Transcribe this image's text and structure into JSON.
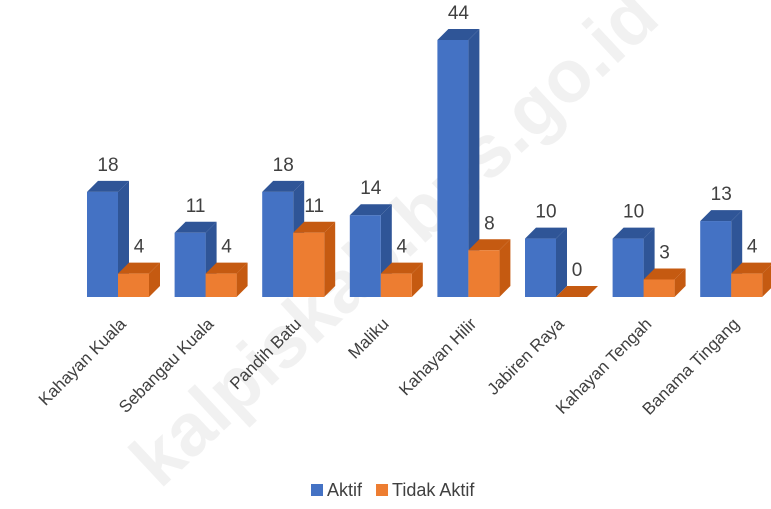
{
  "watermark": "kalpiskab.bps.go.id",
  "colors": {
    "aktif": "#4472c4",
    "aktif_side": "#2f5597",
    "aktif_top": "#2f5597",
    "tidak_aktif": "#ed7d31",
    "tidak_aktif_side": "#c55a11",
    "tidak_aktif_top": "#c55a11"
  },
  "chart_data": {
    "type": "bar",
    "title": "",
    "xlabel": "",
    "ylabel": "",
    "ylim": [
      0,
      44
    ],
    "grid": false,
    "legend_position": "bottom",
    "categories": [
      "Kahayan Kuala",
      "Sebangau Kuala",
      "Pandih Batu",
      "Maliku",
      "Kahayan Hilir",
      "Jabiren Raya",
      "Kahayan Tengah",
      "Banama Tingang"
    ],
    "series": [
      {
        "name": "Aktif",
        "values": [
          18,
          11,
          18,
          14,
          44,
          10,
          10,
          13
        ]
      },
      {
        "name": "Tidak Aktif",
        "values": [
          4,
          4,
          11,
          4,
          8,
          0,
          3,
          4
        ]
      }
    ]
  }
}
